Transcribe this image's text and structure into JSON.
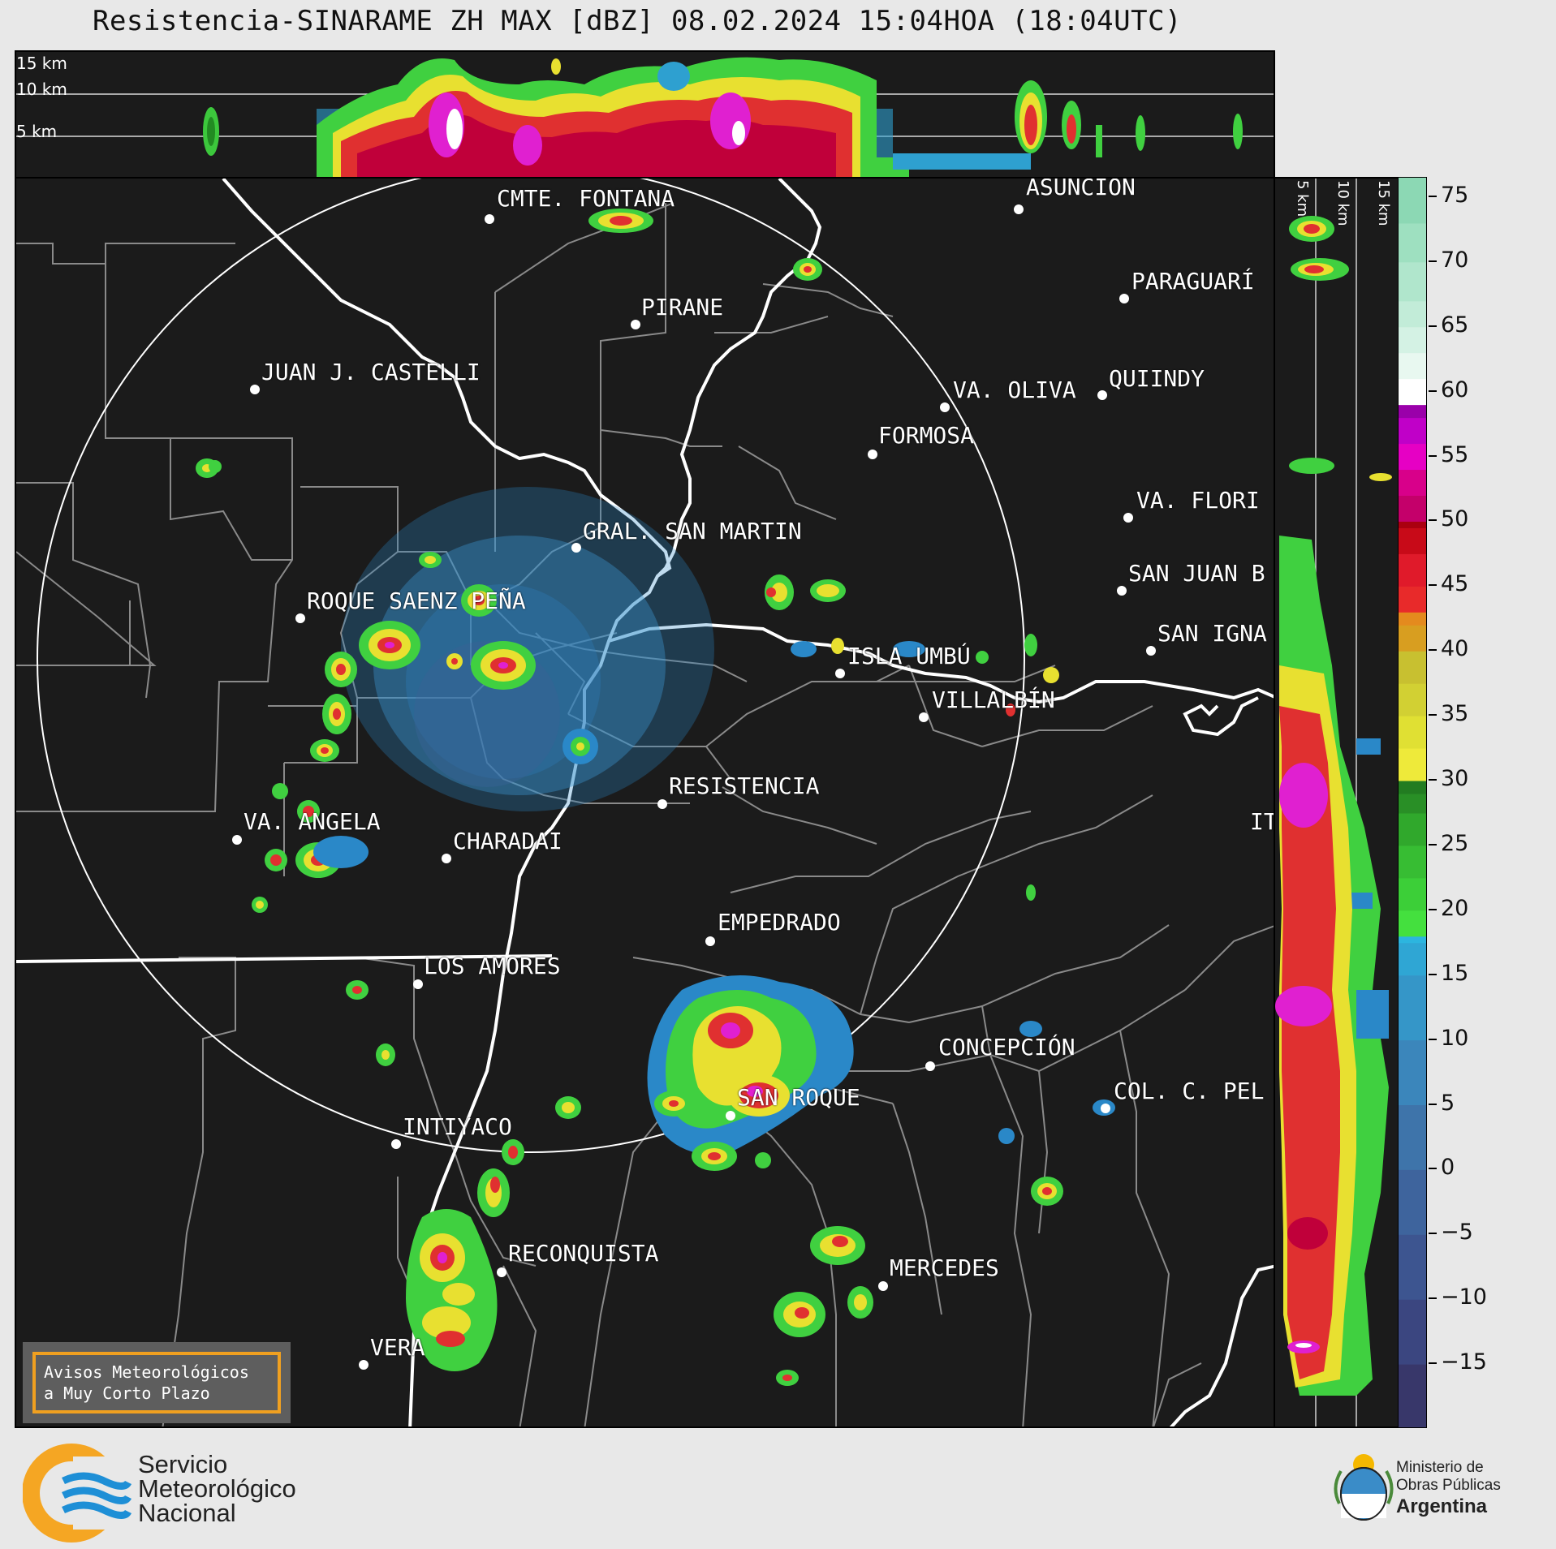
{
  "title": "Resistencia-SINARAME ZH MAX [dBZ] 08.02.2024 15:04HOA (18:04UTC)",
  "top_panel": {
    "height_labels": [
      "15 km",
      "10 km",
      "5 km"
    ]
  },
  "side_panel": {
    "height_labels": [
      "5 km",
      "10 km",
      "15 km"
    ]
  },
  "map": {
    "cities": [
      {
        "name": "CMTE. FONTANA"
      },
      {
        "name": "ASUNCIÓN"
      },
      {
        "name": "PARAGUARÍ"
      },
      {
        "name": "PIRANE"
      },
      {
        "name": "JUAN J. CASTELLI"
      },
      {
        "name": "VA. OLIVA"
      },
      {
        "name": "QUIINDY"
      },
      {
        "name": "FORMOSA"
      },
      {
        "name": "VA. FLORI"
      },
      {
        "name": "GRAL. SAN MARTIN"
      },
      {
        "name": "SAN JUAN B"
      },
      {
        "name": "ROQUE SAENZ PEÑA"
      },
      {
        "name": "SAN IGNA"
      },
      {
        "name": "ISLA UMBÚ"
      },
      {
        "name": "VILLALBÍN"
      },
      {
        "name": "RESISTENCIA"
      },
      {
        "name": "VA. ANGELA"
      },
      {
        "name": "CHARADAI"
      },
      {
        "name": "IT"
      },
      {
        "name": "EMPEDRADO"
      },
      {
        "name": "LOS AMORES"
      },
      {
        "name": "CONCEPCIÓN"
      },
      {
        "name": "COL. C. PEL"
      },
      {
        "name": "SAN ROQUE"
      },
      {
        "name": "INTIYACO"
      },
      {
        "name": "RECONQUISTA"
      },
      {
        "name": "MERCEDES"
      },
      {
        "name": "VERA"
      }
    ]
  },
  "colorbar": {
    "unit": "dBZ",
    "tick_labels": [
      "75",
      "70",
      "65",
      "60",
      "55",
      "50",
      "45",
      "40",
      "35",
      "30",
      "25",
      "20",
      "15",
      "10",
      "5",
      "0",
      "−5",
      "−10",
      "−15"
    ],
    "range": [
      -20,
      76.5
    ]
  },
  "aviso": {
    "line1": "Avisos Meteorológicos",
    "line2": "a Muy Corto Plazo"
  },
  "footer": {
    "smn_line1": "Servicio",
    "smn_line2": "Meteorológico",
    "smn_line3": "Nacional",
    "mop_line1": "Ministerio de",
    "mop_line2": "Obras Públicas",
    "mop_line3": "Argentina"
  }
}
